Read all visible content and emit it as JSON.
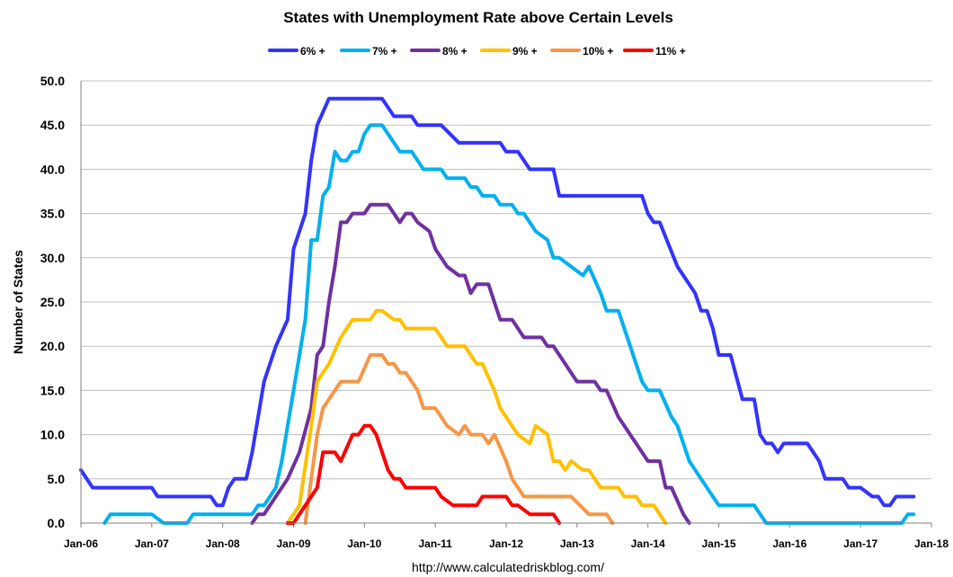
{
  "chart_data": {
    "type": "line",
    "title": "States with Unemployment Rate above Certain Levels",
    "xlabel": "",
    "ylabel": "Number of States",
    "source": "http://www.calculatedriskblog.com/",
    "ylim": [
      0,
      50
    ],
    "yticks": [
      "0.0",
      "5.0",
      "10.0",
      "15.0",
      "20.0",
      "25.0",
      "30.0",
      "35.0",
      "40.0",
      "45.0",
      "50.0"
    ],
    "xlim": [
      "Jan-06",
      "Jan-18"
    ],
    "xticks": [
      "Jan-06",
      "Jan-07",
      "Jan-08",
      "Jan-09",
      "Jan-10",
      "Jan-11",
      "Jan-12",
      "Jan-13",
      "Jan-14",
      "Jan-15",
      "Jan-16",
      "Jan-17",
      "Jan-18"
    ],
    "grid": "horizontal",
    "legend_position": "top-center",
    "series": [
      {
        "name": "6% +",
        "color": "#3333ff",
        "points": [
          [
            "Jan-06",
            6
          ],
          [
            "Mar-06",
            4
          ],
          [
            "Jan-07",
            4
          ],
          [
            "Feb-07",
            3
          ],
          [
            "Nov-07",
            3
          ],
          [
            "Dec-07",
            2
          ],
          [
            "Jan-08",
            2
          ],
          [
            "Feb-08",
            4
          ],
          [
            "Mar-08",
            5
          ],
          [
            "May-08",
            5
          ],
          [
            "Jun-08",
            8
          ],
          [
            "Aug-08",
            16
          ],
          [
            "Oct-08",
            20
          ],
          [
            "Dec-08",
            23
          ],
          [
            "Jan-09",
            31
          ],
          [
            "Mar-09",
            35
          ],
          [
            "Apr-09",
            41
          ],
          [
            "May-09",
            45
          ],
          [
            "Jul-09",
            48
          ],
          [
            "Apr-10",
            48
          ],
          [
            "Jun-10",
            46
          ],
          [
            "Sep-10",
            46
          ],
          [
            "Oct-10",
            45
          ],
          [
            "Feb-11",
            45
          ],
          [
            "May-11",
            43
          ],
          [
            "Dec-11",
            43
          ],
          [
            "Jan-12",
            42
          ],
          [
            "Mar-12",
            42
          ],
          [
            "May-12",
            40
          ],
          [
            "Sep-12",
            40
          ],
          [
            "Oct-12",
            37
          ],
          [
            "Dec-13",
            37
          ],
          [
            "Jan-14",
            35
          ],
          [
            "Feb-14",
            34
          ],
          [
            "Mar-14",
            34
          ],
          [
            "Jun-14",
            29
          ],
          [
            "Sep-14",
            26
          ],
          [
            "Oct-14",
            24
          ],
          [
            "Nov-14",
            24
          ],
          [
            "Dec-14",
            22
          ],
          [
            "Jan-15",
            19
          ],
          [
            "Mar-15",
            19
          ],
          [
            "May-15",
            14
          ],
          [
            "Jul-15",
            14
          ],
          [
            "Aug-15",
            10
          ],
          [
            "Sep-15",
            9
          ],
          [
            "Oct-15",
            9
          ],
          [
            "Nov-15",
            8
          ],
          [
            "Dec-15",
            9
          ],
          [
            "Apr-16",
            9
          ],
          [
            "Jun-16",
            7
          ],
          [
            "Jul-16",
            5
          ],
          [
            "Oct-16",
            5
          ],
          [
            "Nov-16",
            4
          ],
          [
            "Jan-17",
            4
          ],
          [
            "Mar-17",
            3
          ],
          [
            "Apr-17",
            3
          ],
          [
            "May-17",
            2
          ],
          [
            "Jun-17",
            2
          ],
          [
            "Jul-17",
            3
          ],
          [
            "Oct-17",
            3
          ]
        ]
      },
      {
        "name": "7% +",
        "color": "#00b0f0",
        "points": [
          [
            "May-06",
            0
          ],
          [
            "Jun-06",
            1
          ],
          [
            "Jan-07",
            1
          ],
          [
            "Mar-07",
            0
          ],
          [
            "Jul-07",
            0
          ],
          [
            "Aug-07",
            1
          ],
          [
            "Jun-08",
            1
          ],
          [
            "Jul-08",
            2
          ],
          [
            "Aug-08",
            2
          ],
          [
            "Oct-08",
            4
          ],
          [
            "Nov-08",
            7
          ],
          [
            "Jan-09",
            15
          ],
          [
            "Mar-09",
            23
          ],
          [
            "Apr-09",
            32
          ],
          [
            "May-09",
            32
          ],
          [
            "Jun-09",
            37
          ],
          [
            "Jul-09",
            38
          ],
          [
            "Aug-09",
            42
          ],
          [
            "Sep-09",
            41
          ],
          [
            "Oct-09",
            41
          ],
          [
            "Nov-09",
            42
          ],
          [
            "Dec-09",
            42
          ],
          [
            "Jan-10",
            44
          ],
          [
            "Feb-10",
            45
          ],
          [
            "Apr-10",
            45
          ],
          [
            "Jun-10",
            43
          ],
          [
            "Jul-10",
            42
          ],
          [
            "Sep-10",
            42
          ],
          [
            "Nov-10",
            40
          ],
          [
            "Feb-11",
            40
          ],
          [
            "Mar-11",
            39
          ],
          [
            "Jun-11",
            39
          ],
          [
            "Jul-11",
            38
          ],
          [
            "Aug-11",
            38
          ],
          [
            "Sep-11",
            37
          ],
          [
            "Nov-11",
            37
          ],
          [
            "Dec-11",
            36
          ],
          [
            "Feb-12",
            36
          ],
          [
            "Mar-12",
            35
          ],
          [
            "Apr-12",
            35
          ],
          [
            "Jun-12",
            33
          ],
          [
            "Aug-12",
            32
          ],
          [
            "Sep-12",
            30
          ],
          [
            "Oct-12",
            30
          ],
          [
            "Dec-12",
            29
          ],
          [
            "Feb-13",
            28
          ],
          [
            "Mar-13",
            29
          ],
          [
            "May-13",
            26
          ],
          [
            "Jun-13",
            24
          ],
          [
            "Aug-13",
            24
          ],
          [
            "Oct-13",
            20
          ],
          [
            "Dec-13",
            16
          ],
          [
            "Jan-14",
            15
          ],
          [
            "Mar-14",
            15
          ],
          [
            "May-14",
            12
          ],
          [
            "Jun-14",
            11
          ],
          [
            "Aug-14",
            7
          ],
          [
            "Oct-14",
            5
          ],
          [
            "Dec-14",
            3
          ],
          [
            "Jan-15",
            2
          ],
          [
            "Jul-15",
            2
          ],
          [
            "Sep-15",
            0
          ],
          [
            "Aug-17",
            0
          ],
          [
            "Sep-17",
            1
          ],
          [
            "Oct-17",
            1
          ]
        ]
      },
      {
        "name": "8% +",
        "color": "#7030a0",
        "points": [
          [
            "Jun-08",
            0
          ],
          [
            "Jul-08",
            1
          ],
          [
            "Aug-08",
            1
          ],
          [
            "Oct-08",
            3
          ],
          [
            "Dec-08",
            5
          ],
          [
            "Feb-09",
            8
          ],
          [
            "Apr-09",
            13
          ],
          [
            "May-09",
            19
          ],
          [
            "Jun-09",
            20
          ],
          [
            "Jul-09",
            25
          ],
          [
            "Aug-09",
            29
          ],
          [
            "Sep-09",
            34
          ],
          [
            "Oct-09",
            34
          ],
          [
            "Nov-09",
            35
          ],
          [
            "Jan-10",
            35
          ],
          [
            "Feb-10",
            36
          ],
          [
            "May-10",
            36
          ],
          [
            "Jun-10",
            35
          ],
          [
            "Jul-10",
            34
          ],
          [
            "Aug-10",
            35
          ],
          [
            "Sep-10",
            35
          ],
          [
            "Oct-10",
            34
          ],
          [
            "Dec-10",
            33
          ],
          [
            "Jan-11",
            31
          ],
          [
            "Mar-11",
            29
          ],
          [
            "May-11",
            28
          ],
          [
            "Jun-11",
            28
          ],
          [
            "Jul-11",
            26
          ],
          [
            "Aug-11",
            27
          ],
          [
            "Oct-11",
            27
          ],
          [
            "Dec-11",
            23
          ],
          [
            "Feb-12",
            23
          ],
          [
            "Apr-12",
            21
          ],
          [
            "Jul-12",
            21
          ],
          [
            "Aug-12",
            20
          ],
          [
            "Sep-12",
            20
          ],
          [
            "Nov-12",
            18
          ],
          [
            "Jan-13",
            16
          ],
          [
            "Apr-13",
            16
          ],
          [
            "May-13",
            15
          ],
          [
            "Jun-13",
            15
          ],
          [
            "Aug-13",
            12
          ],
          [
            "Oct-13",
            10
          ],
          [
            "Jan-14",
            7
          ],
          [
            "Mar-14",
            7
          ],
          [
            "Apr-14",
            4
          ],
          [
            "May-14",
            4
          ],
          [
            "Jul-14",
            1
          ],
          [
            "Aug-14",
            0
          ]
        ]
      },
      {
        "name": "9% +",
        "color": "#ffc000",
        "points": [
          [
            "Dec-08",
            0
          ],
          [
            "Jan-09",
            1
          ],
          [
            "Feb-09",
            2
          ],
          [
            "Apr-09",
            11
          ],
          [
            "May-09",
            16
          ],
          [
            "Jun-09",
            17
          ],
          [
            "Jul-09",
            18
          ],
          [
            "Sep-09",
            21
          ],
          [
            "Oct-09",
            22
          ],
          [
            "Nov-09",
            23
          ],
          [
            "Feb-10",
            23
          ],
          [
            "Mar-10",
            24
          ],
          [
            "Apr-10",
            24
          ],
          [
            "Jun-10",
            23
          ],
          [
            "Jul-10",
            23
          ],
          [
            "Aug-10",
            22
          ],
          [
            "Dec-10",
            22
          ],
          [
            "Jan-11",
            22
          ],
          [
            "Mar-11",
            20
          ],
          [
            "Jun-11",
            20
          ],
          [
            "Aug-11",
            18
          ],
          [
            "Sep-11",
            18
          ],
          [
            "Nov-11",
            15
          ],
          [
            "Dec-11",
            13
          ],
          [
            "Mar-12",
            10
          ],
          [
            "May-12",
            9
          ],
          [
            "Jun-12",
            11
          ],
          [
            "Aug-12",
            10
          ],
          [
            "Sep-12",
            7
          ],
          [
            "Oct-12",
            7
          ],
          [
            "Nov-12",
            6
          ],
          [
            "Dec-12",
            7
          ],
          [
            "Feb-13",
            6
          ],
          [
            "Mar-13",
            6
          ],
          [
            "May-13",
            4
          ],
          [
            "Aug-13",
            4
          ],
          [
            "Sep-13",
            3
          ],
          [
            "Nov-13",
            3
          ],
          [
            "Dec-13",
            2
          ],
          [
            "Feb-14",
            2
          ],
          [
            "Apr-14",
            0
          ]
        ]
      },
      {
        "name": "10% +",
        "color": "#f79646",
        "points": [
          [
            "Mar-09",
            0
          ],
          [
            "May-09",
            10
          ],
          [
            "Jun-09",
            13
          ],
          [
            "Aug-09",
            15
          ],
          [
            "Sep-09",
            16
          ],
          [
            "Dec-09",
            16
          ],
          [
            "Feb-10",
            19
          ],
          [
            "Apr-10",
            19
          ],
          [
            "May-10",
            18
          ],
          [
            "Jun-10",
            18
          ],
          [
            "Jul-10",
            17
          ],
          [
            "Aug-10",
            17
          ],
          [
            "Oct-10",
            15
          ],
          [
            "Nov-10",
            13
          ],
          [
            "Jan-11",
            13
          ],
          [
            "Mar-11",
            11
          ],
          [
            "May-11",
            10
          ],
          [
            "Jun-11",
            11
          ],
          [
            "Jul-11",
            10
          ],
          [
            "Sep-11",
            10
          ],
          [
            "Oct-11",
            9
          ],
          [
            "Nov-11",
            10
          ],
          [
            "Jan-12",
            7
          ],
          [
            "Feb-12",
            5
          ],
          [
            "Apr-12",
            3
          ],
          [
            "Dec-12",
            3
          ],
          [
            "Mar-13",
            1
          ],
          [
            "Jun-13",
            1
          ],
          [
            "Jul-13",
            0
          ]
        ]
      },
      {
        "name": "11% +",
        "color": "#ff0000",
        "points": [
          [
            "Dec-08",
            0
          ],
          [
            "Jan-09",
            0
          ],
          [
            "Apr-09",
            3
          ],
          [
            "May-09",
            4
          ],
          [
            "Jun-09",
            8
          ],
          [
            "Aug-09",
            8
          ],
          [
            "Sep-09",
            7
          ],
          [
            "Nov-09",
            10
          ],
          [
            "Dec-09",
            10
          ],
          [
            "Jan-10",
            11
          ],
          [
            "Feb-10",
            11
          ],
          [
            "Mar-10",
            10
          ],
          [
            "May-10",
            6
          ],
          [
            "Jun-10",
            5
          ],
          [
            "Jul-10",
            5
          ],
          [
            "Aug-10",
            4
          ],
          [
            "Jan-11",
            4
          ],
          [
            "Feb-11",
            3
          ],
          [
            "Apr-11",
            2
          ],
          [
            "Aug-11",
            2
          ],
          [
            "Sep-11",
            3
          ],
          [
            "Jan-12",
            3
          ],
          [
            "Feb-12",
            2
          ],
          [
            "Mar-12",
            2
          ],
          [
            "May-12",
            1
          ],
          [
            "Jul-12",
            1
          ],
          [
            "Sep-12",
            1
          ],
          [
            "Oct-12",
            0
          ]
        ]
      }
    ]
  }
}
